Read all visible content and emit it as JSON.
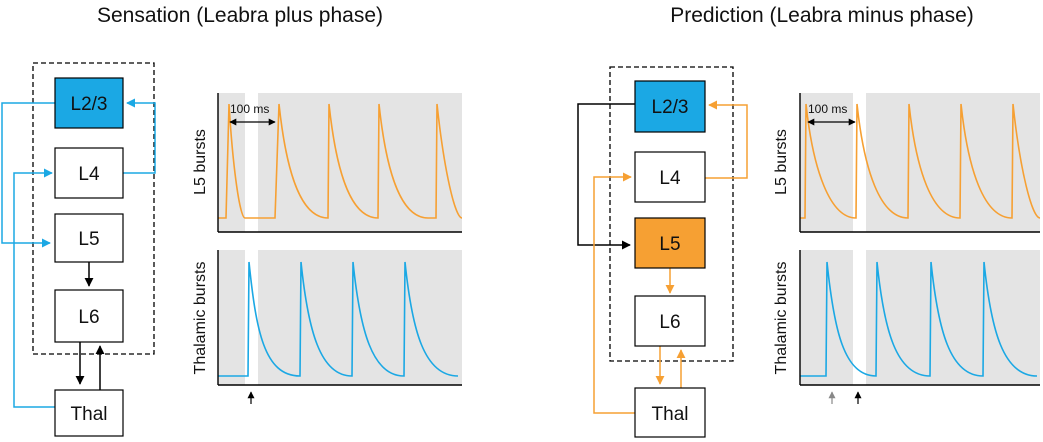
{
  "colors": {
    "blue": "#1ba8e4",
    "orange": "#f6a033",
    "shade": "#e4e4e4",
    "box": "#ffffff",
    "line": "#000000",
    "gray_marker": "#888888"
  },
  "panels": [
    {
      "id": "sensation",
      "title": "Sensation (Leabra plus phase)",
      "layers": {
        "l23": "L2/3",
        "l4": "L4",
        "l5": "L5",
        "l6": "L6",
        "thal": "Thal"
      },
      "l23_fill": "#1ba8e4",
      "l5_fill": "#ffffff",
      "scale_label": "100 ms",
      "l5_plot_label": "L5 bursts",
      "thal_plot_label": "Thalamic bursts"
    },
    {
      "id": "prediction",
      "title": "Prediction (Leabra minus phase)",
      "layers": {
        "l23": "L2/3",
        "l4": "L4",
        "l5": "L5",
        "l6": "L6",
        "thal": "Thal"
      },
      "l23_fill": "#1ba8e4",
      "l5_fill": "#f6a033",
      "scale_label": "100 ms",
      "l5_plot_label": "L5 bursts",
      "thal_plot_label": "Thalamic bursts"
    }
  ]
}
